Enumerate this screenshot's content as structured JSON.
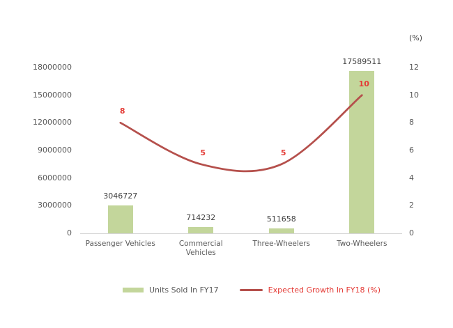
{
  "chart_data": {
    "type": "combo",
    "subtypes": [
      "bar",
      "line"
    ],
    "categories": [
      "Passenger Vehicles",
      "Commercial Vehicles",
      "Three-Wheelers",
      "Two-Wheelers"
    ],
    "category_labels": [
      "Passenger Vehicles",
      "Commercial\nVehicles",
      "Three-Wheelers",
      "Two-Wheelers"
    ],
    "series": [
      {
        "name": "Units Sold In FY17",
        "type": "bar",
        "axis": "left",
        "values": [
          3046727,
          714232,
          511658,
          17589511
        ],
        "color": "#c3d69b",
        "label_color": "#404040"
      },
      {
        "name": "Expected Growth In FY18 (%)",
        "type": "line",
        "axis": "right",
        "values": [
          8,
          5,
          5,
          10
        ],
        "color": "#b5504c",
        "label_color": "#e43b36",
        "smooth": true
      }
    ],
    "left_axis": {
      "ticks": [
        0,
        3000000,
        6000000,
        9000000,
        12000000,
        15000000,
        18000000
      ],
      "range": [
        0,
        18000000
      ]
    },
    "right_axis": {
      "title": "(%)",
      "ticks": [
        0,
        2,
        4,
        6,
        8,
        10,
        12
      ],
      "range": [
        0,
        12
      ]
    },
    "grid": false,
    "legend_position": "bottom",
    "legend": {
      "entries": [
        {
          "label": "Units Sold In FY17",
          "swatch": "bar",
          "color": "#c3d69b",
          "text_color": "#595959"
        },
        {
          "label": "Expected Growth In FY18 (%)",
          "swatch": "line",
          "color": "#b5504c",
          "text_color": "#e43b36"
        }
      ]
    },
    "colors": {
      "axis_text": "#595959",
      "axis_line": "#d6d6d6",
      "background": "#ffffff"
    }
  }
}
